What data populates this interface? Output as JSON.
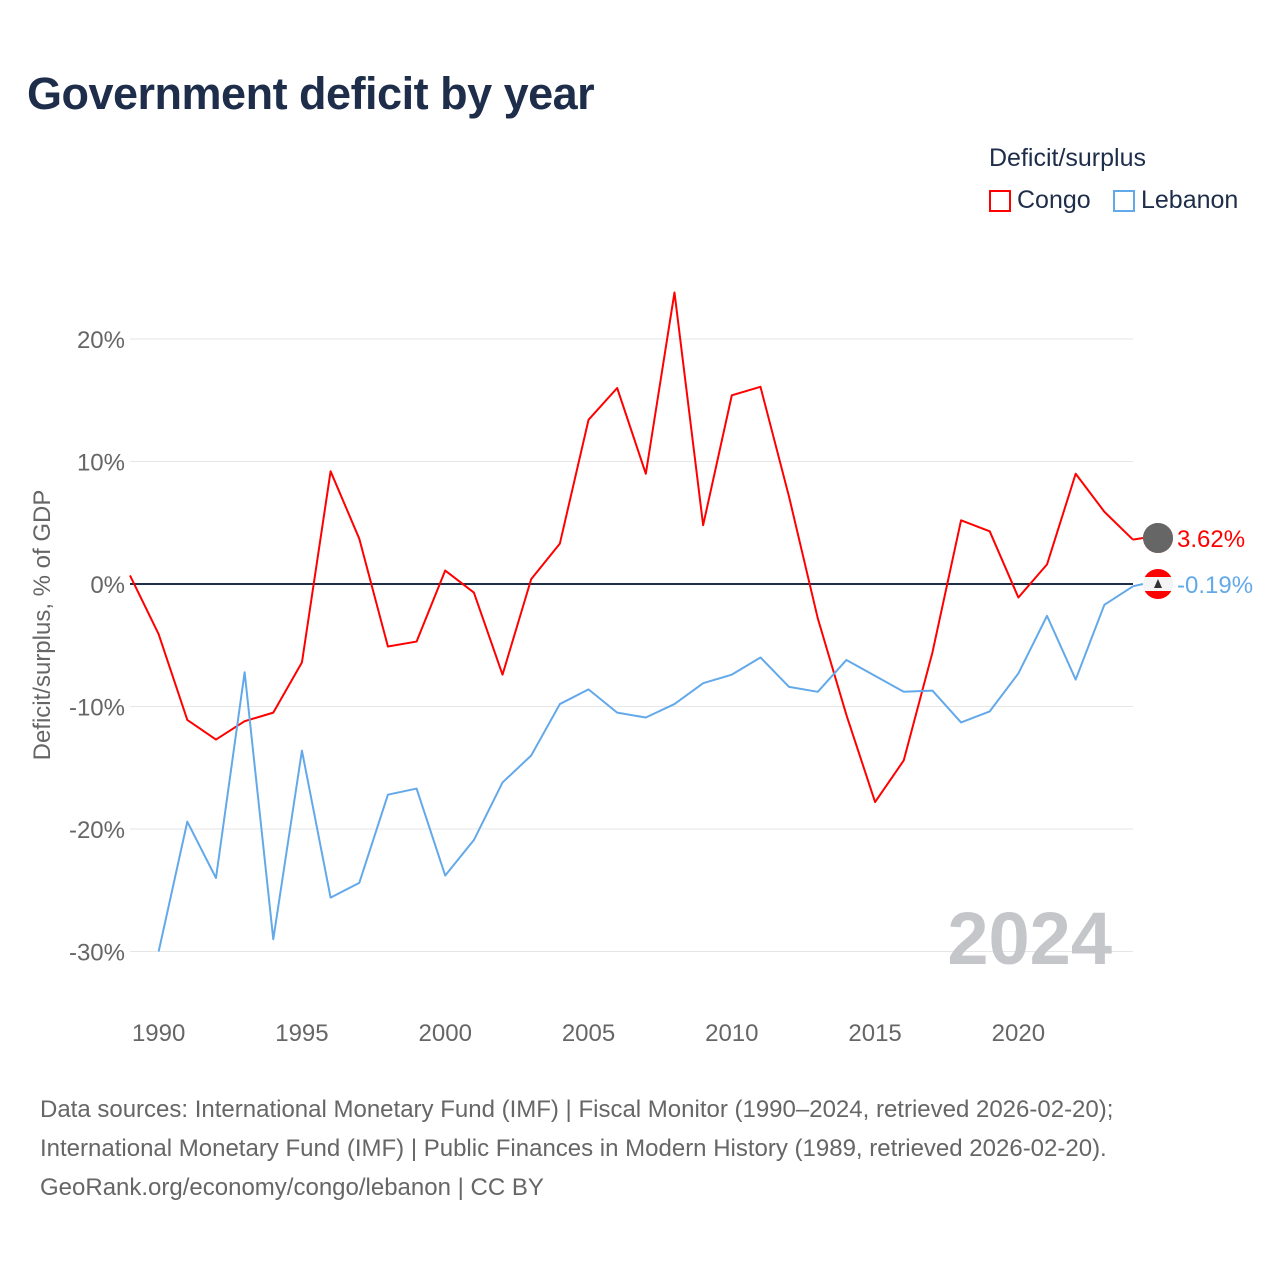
{
  "chart_data": {
    "type": "line",
    "title": "Government deficit by year",
    "ylabel": "Deficit/surplus, % of GDP",
    "xlabel": "",
    "ylim": [
      -33,
      25
    ],
    "xlim": [
      1989,
      2024
    ],
    "yticks": [
      20,
      10,
      0,
      -10,
      -20,
      -30
    ],
    "ytick_labels": [
      "20%",
      "10%",
      "0%",
      "-10%",
      "-20%",
      "-30%"
    ],
    "xticks": [
      1990,
      1995,
      2000,
      2005,
      2010,
      2015,
      2020
    ],
    "xtick_labels": [
      "1990",
      "1995",
      "2000",
      "2005",
      "2010",
      "2015",
      "2020"
    ],
    "grid": true,
    "legend": {
      "title": "Deficit/surplus",
      "placement": "top-right"
    },
    "year_watermark": "2024",
    "series": [
      {
        "name": "Congo",
        "color": "#ff0000",
        "end_label": "3.62%",
        "x": [
          1989,
          1990,
          1991,
          1992,
          1993,
          1994,
          1995,
          1996,
          1997,
          1998,
          1999,
          2000,
          2001,
          2002,
          2003,
          2004,
          2005,
          2006,
          2007,
          2008,
          2009,
          2010,
          2011,
          2012,
          2013,
          2014,
          2015,
          2016,
          2017,
          2018,
          2019,
          2020,
          2021,
          2022,
          2023,
          2024
        ],
        "values": [
          0.7,
          -4.1,
          -11.1,
          -12.7,
          -11.2,
          -10.5,
          -6.4,
          9.2,
          3.7,
          -5.1,
          -4.7,
          1.1,
          -0.7,
          -7.4,
          0.4,
          3.3,
          13.4,
          16.0,
          9.0,
          23.8,
          4.8,
          15.4,
          16.1,
          7.1,
          -2.8,
          -10.7,
          -17.8,
          -14.4,
          -5.6,
          5.2,
          4.3,
          -1.1,
          1.6,
          9.0,
          5.9,
          3.62
        ]
      },
      {
        "name": "Lebanon",
        "color": "#63a9ea",
        "end_label": "-0.19%",
        "x": [
          1990,
          1991,
          1992,
          1993,
          1994,
          1995,
          1996,
          1997,
          1998,
          1999,
          2000,
          2001,
          2002,
          2003,
          2004,
          2005,
          2006,
          2007,
          2008,
          2009,
          2010,
          2011,
          2012,
          2013,
          2014,
          2015,
          2016,
          2017,
          2018,
          2019,
          2020,
          2021,
          2022,
          2023,
          2024
        ],
        "values": [
          -30.0,
          -19.4,
          -24.0,
          -7.2,
          -29.0,
          -13.6,
          -25.6,
          -24.4,
          -17.2,
          -16.7,
          -23.8,
          -20.9,
          -16.2,
          -14.0,
          -9.8,
          -8.6,
          -10.5,
          -10.9,
          -9.8,
          -8.1,
          -7.4,
          -6.0,
          -8.4,
          -8.8,
          -6.2,
          -7.5,
          -8.8,
          -8.7,
          -11.3,
          -10.4,
          -7.3,
          -2.6,
          -7.8,
          -1.7,
          -0.19
        ]
      }
    ]
  },
  "footer": {
    "line1": "Data sources: International Monetary Fund (IMF) | Fiscal Monitor (1990–2024, retrieved 2026-02-20);",
    "line2": "International Monetary Fund (IMF) | Public Finances in Modern History (1989, retrieved 2026-02-20).",
    "line3": "GeoRank.org/economy/congo/lebanon | CC BY"
  }
}
